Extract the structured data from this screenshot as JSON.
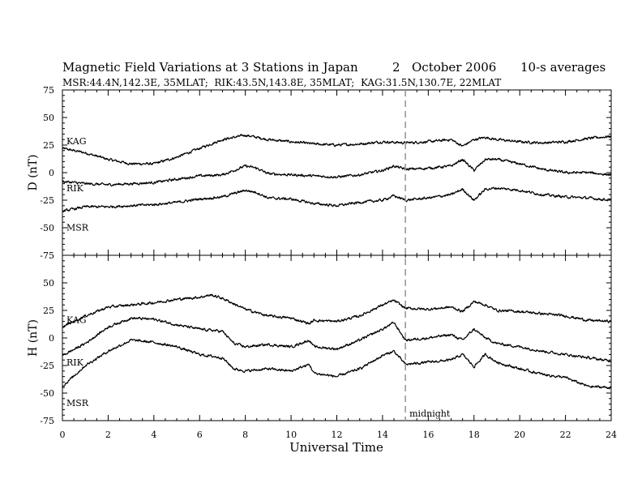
{
  "header": {
    "title": "Magnetic Field Variations at 3 Stations in Japan",
    "date_day": "2",
    "date_month_year": "October 2006",
    "averaging": "10-s averages",
    "stations_line": "MSR:44.4N,142.3E, 35MLAT;  RIK:43.5N,143.8E, 35MLAT;  KAG:31.5N,130.7E, 22MLAT"
  },
  "chart_data": [
    {
      "type": "line",
      "panel": "D",
      "ylabel": "D (nT)",
      "ylim": [
        -75,
        75
      ],
      "yticks": [
        "75",
        "50",
        "25",
        "0",
        "-25",
        "-50",
        "-75"
      ],
      "xlim": [
        0,
        24
      ],
      "series": [
        {
          "name": "KAG",
          "x": [
            0,
            1,
            2,
            3,
            4,
            5,
            6,
            7,
            8,
            9,
            10,
            11,
            12,
            13,
            14,
            15,
            16,
            17,
            17.5,
            18,
            18.5,
            19,
            20,
            21,
            22,
            23,
            24
          ],
          "y": [
            22,
            18,
            12,
            8,
            8,
            14,
            22,
            30,
            34,
            30,
            28,
            26,
            25,
            26,
            28,
            27,
            28,
            30,
            24,
            30,
            32,
            30,
            28,
            27,
            28,
            31,
            33
          ]
        },
        {
          "name": "RIK",
          "x": [
            0,
            1,
            2,
            3,
            4,
            5,
            6,
            7,
            8,
            8.5,
            9,
            10,
            11,
            12,
            13,
            14,
            14.5,
            15,
            16,
            17,
            17.5,
            18,
            18.5,
            19,
            20,
            21,
            22,
            23,
            24
          ],
          "y": [
            -8,
            -10,
            -11,
            -10,
            -9,
            -6,
            -3,
            -2,
            6,
            4,
            -1,
            -2,
            -3,
            -4,
            -2,
            2,
            6,
            3,
            4,
            6,
            12,
            2,
            12,
            12,
            8,
            3,
            0,
            0,
            -2
          ]
        },
        {
          "name": "MSR",
          "x": [
            0,
            1,
            2,
            3,
            4,
            5,
            6,
            7,
            8,
            8.5,
            9,
            10,
            11,
            12,
            13,
            14,
            14.5,
            15,
            16,
            17,
            17.5,
            18,
            18.5,
            19,
            20,
            21,
            22,
            23,
            24
          ],
          "y": [
            -35,
            -31,
            -31,
            -30,
            -29,
            -27,
            -24,
            -22,
            -16,
            -18,
            -23,
            -24,
            -28,
            -30,
            -27,
            -25,
            -21,
            -25,
            -23,
            -20,
            -15,
            -25,
            -15,
            -14,
            -16,
            -20,
            -22,
            -23,
            -25
          ]
        }
      ],
      "series_label_order": [
        "KAG",
        "RIK",
        "MSR"
      ]
    },
    {
      "type": "line",
      "panel": "H",
      "ylabel": "H (nT)",
      "ylim": [
        -75,
        75
      ],
      "yticks": [
        "75",
        "50",
        "25",
        "0",
        "-25",
        "-50",
        "-75"
      ],
      "xlim": [
        0,
        24
      ],
      "xticks": [
        "0",
        "2",
        "4",
        "6",
        "8",
        "10",
        "12",
        "14",
        "16",
        "18",
        "20",
        "22",
        "24"
      ],
      "xlabel": "Universal Time",
      "series": [
        {
          "name": "KAG",
          "x": [
            0,
            1,
            2,
            3,
            4,
            5,
            6,
            6.5,
            7,
            8,
            9,
            10,
            10.8,
            11,
            12,
            13,
            14,
            14.5,
            15,
            16,
            17,
            17.5,
            18,
            18.5,
            19,
            20,
            21,
            22,
            23,
            24
          ],
          "y": [
            10,
            20,
            28,
            30,
            32,
            35,
            37,
            39,
            36,
            26,
            20,
            18,
            13,
            16,
            15,
            20,
            30,
            34,
            27,
            26,
            28,
            24,
            33,
            30,
            25,
            24,
            22,
            20,
            16,
            15
          ]
        },
        {
          "name": "RIK",
          "x": [
            0,
            1,
            2,
            3,
            4,
            5,
            6,
            7,
            7.5,
            8,
            9,
            10,
            10.8,
            11,
            12,
            13,
            14,
            14.5,
            15,
            16,
            17,
            17.5,
            18,
            18.5,
            19,
            20,
            21,
            22,
            23,
            24
          ],
          "y": [
            -16,
            -5,
            10,
            18,
            17,
            12,
            8,
            6,
            -5,
            -8,
            -6,
            -8,
            -2,
            -8,
            -10,
            -2,
            8,
            14,
            -2,
            0,
            3,
            -2,
            8,
            0,
            -5,
            -8,
            -12,
            -15,
            -18,
            -21
          ]
        },
        {
          "name": "MSR",
          "x": [
            0,
            1,
            2,
            3,
            4,
            5,
            6,
            7,
            7.5,
            8,
            9,
            10,
            10.8,
            11,
            12,
            13,
            14,
            14.5,
            15,
            16,
            17,
            17.5,
            18,
            18.5,
            19,
            20,
            21,
            22,
            23,
            24
          ],
          "y": [
            -44,
            -25,
            -12,
            -2,
            -4,
            -8,
            -15,
            -18,
            -28,
            -30,
            -28,
            -30,
            -24,
            -32,
            -35,
            -28,
            -16,
            -12,
            -24,
            -22,
            -20,
            -15,
            -26,
            -15,
            -22,
            -28,
            -33,
            -36,
            -44,
            -45
          ]
        }
      ],
      "series_label_order": [
        "KAG",
        "RIK",
        "MSR"
      ]
    }
  ],
  "annotation": {
    "midnight_label": "midnight",
    "midnight_ut": 15
  },
  "colors": {
    "line": "#000000",
    "midnight_line": "#999999"
  }
}
